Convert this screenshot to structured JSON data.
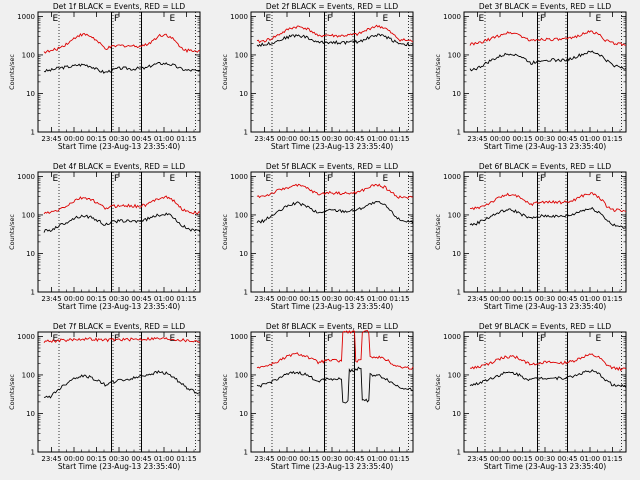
{
  "figure": {
    "background": "#f0f0f0",
    "colors": {
      "events": "#000000",
      "lld": "#dd0000"
    }
  },
  "chart_data": [
    {
      "type": "line",
      "title": "Det 1f BLACK = Events, RED = LLD",
      "xlabel": "Start Time (23-Aug-13 23:35:40)",
      "ylabel": "Counts/sec",
      "x_ticks": [
        "23:45",
        "00:00",
        "00:15",
        "00:30",
        "00:45",
        "01:00",
        "01:15"
      ],
      "y_ticks": [
        "1",
        "10",
        "100",
        "1000"
      ],
      "xlim_minutes": [
        -9,
        99
      ],
      "ylim": [
        1,
        1300
      ],
      "y_scale": "log",
      "vertical_lines_solid_min": [
        40,
        60
      ],
      "vertical_lines_dotted_min": [
        5,
        41,
        59,
        96
      ],
      "markers": [
        {
          "label": "E",
          "x": 0
        },
        {
          "label": "F",
          "x": 41
        },
        {
          "label": "E",
          "x": 78
        }
      ],
      "shape": "hump",
      "series": [
        {
          "name": "Events",
          "values": [
            38,
            40,
            45,
            48,
            50,
            55,
            56,
            50,
            40,
            35,
            40,
            45,
            45,
            43,
            45,
            45,
            55,
            60,
            60,
            55,
            45,
            40,
            40,
            37
          ]
        },
        {
          "name": "LLD",
          "values": [
            120,
            125,
            145,
            180,
            230,
            320,
            340,
            300,
            210,
            145,
            160,
            175,
            175,
            170,
            170,
            180,
            230,
            320,
            340,
            260,
            160,
            130,
            135,
            125
          ]
        }
      ]
    },
    {
      "type": "line",
      "title": "Det 2f BLACK = Events, RED = LLD",
      "xlabel": "Start Time (23-Aug-13 23:35:40)",
      "ylabel": "Counts/sec",
      "x_ticks": [
        "23:45",
        "00:00",
        "00:15",
        "00:30",
        "00:45",
        "01:00",
        "01:15"
      ],
      "y_ticks": [
        "1",
        "10",
        "100",
        "1000"
      ],
      "xlim_minutes": [
        -9,
        99
      ],
      "ylim": [
        1,
        1300
      ],
      "y_scale": "log",
      "vertical_lines_solid_min": [
        40,
        60
      ],
      "vertical_lines_dotted_min": [
        5,
        41,
        59,
        96
      ],
      "markers": [
        {
          "label": "E",
          "x": 0
        },
        {
          "label": "F",
          "x": 41
        },
        {
          "label": "E",
          "x": 78
        }
      ],
      "shape": "hump",
      "series": [
        {
          "name": "Events",
          "values": [
            180,
            185,
            200,
            230,
            270,
            310,
            320,
            300,
            250,
            210,
            215,
            215,
            210,
            210,
            215,
            220,
            260,
            310,
            330,
            300,
            240,
            200,
            190,
            180
          ]
        },
        {
          "name": "LLD",
          "values": [
            220,
            230,
            260,
            320,
            400,
            500,
            540,
            510,
            420,
            300,
            330,
            320,
            310,
            320,
            330,
            350,
            420,
            530,
            560,
            480,
            340,
            250,
            240,
            230
          ]
        }
      ]
    },
    {
      "type": "line",
      "title": "Det 3f BLACK = Events, RED = LLD",
      "xlabel": "Start Time (23-Aug-13 23:35:40)",
      "ylabel": "Counts/sec",
      "x_ticks": [
        "23:45",
        "00:00",
        "00:15",
        "00:30",
        "00:45",
        "01:00",
        "01:15"
      ],
      "y_ticks": [
        "1",
        "10",
        "100",
        "1000"
      ],
      "xlim_minutes": [
        -9,
        99
      ],
      "ylim": [
        1,
        1300
      ],
      "y_scale": "log",
      "vertical_lines_solid_min": [
        40,
        60
      ],
      "vertical_lines_dotted_min": [
        5,
        41,
        59,
        96
      ],
      "markers": [
        {
          "label": "E",
          "x": 0
        },
        {
          "label": "F",
          "x": 41
        },
        {
          "label": "E",
          "x": 78
        }
      ],
      "shape": "hump",
      "series": [
        {
          "name": "Events",
          "values": [
            42,
            44,
            55,
            70,
            85,
            100,
            110,
            100,
            80,
            60,
            70,
            75,
            75,
            72,
            75,
            80,
            95,
            110,
            120,
            105,
            75,
            55,
            50,
            45
          ]
        },
        {
          "name": "LLD",
          "values": [
            190,
            195,
            220,
            260,
            300,
            360,
            380,
            350,
            280,
            230,
            250,
            260,
            255,
            250,
            255,
            270,
            320,
            380,
            400,
            340,
            240,
            200,
            195,
            190
          ]
        }
      ]
    },
    {
      "type": "line",
      "title": "Det 4f BLACK = Events, RED = LLD",
      "xlabel": "Start Time (23-Aug-13 23:35:40)",
      "ylabel": "Counts/sec",
      "x_ticks": [
        "23:45",
        "00:00",
        "00:15",
        "00:30",
        "00:45",
        "01:00",
        "01:15"
      ],
      "y_ticks": [
        "1",
        "10",
        "100",
        "1000"
      ],
      "xlim_minutes": [
        -9,
        99
      ],
      "ylim": [
        1,
        1300
      ],
      "y_scale": "log",
      "vertical_lines_solid_min": [
        40,
        60
      ],
      "vertical_lines_dotted_min": [
        5,
        41,
        59,
        96
      ],
      "markers": [
        {
          "label": "E",
          "x": 0
        },
        {
          "label": "F",
          "x": 41
        },
        {
          "label": "E",
          "x": 78
        }
      ],
      "shape": "hump",
      "series": [
        {
          "name": "Events",
          "values": [
            38,
            40,
            50,
            60,
            75,
            90,
            95,
            85,
            70,
            55,
            65,
            70,
            70,
            68,
            70,
            75,
            90,
            100,
            105,
            90,
            60,
            45,
            40,
            37
          ]
        },
        {
          "name": "LLD",
          "values": [
            110,
            115,
            130,
            160,
            200,
            260,
            280,
            250,
            190,
            150,
            165,
            175,
            175,
            170,
            170,
            180,
            220,
            280,
            300,
            240,
            160,
            120,
            115,
            110
          ]
        }
      ]
    },
    {
      "type": "line",
      "title": "Det 5f BLACK = Events, RED = LLD",
      "xlabel": "Start Time (23-Aug-13 23:35:40)",
      "ylabel": "Counts/sec",
      "x_ticks": [
        "23:45",
        "00:00",
        "00:15",
        "00:30",
        "00:45",
        "01:00",
        "01:15"
      ],
      "y_ticks": [
        "1",
        "10",
        "100",
        "1000"
      ],
      "xlim_minutes": [
        -9,
        99
      ],
      "ylim": [
        1,
        1300
      ],
      "y_scale": "log",
      "vertical_lines_solid_min": [
        40,
        60
      ],
      "vertical_lines_dotted_min": [
        5,
        41,
        59,
        96
      ],
      "markers": [
        {
          "label": "E",
          "x": 0
        },
        {
          "label": "F",
          "x": 41
        },
        {
          "label": "E",
          "x": 78
        }
      ],
      "shape": "hump",
      "series": [
        {
          "name": "Events",
          "values": [
            65,
            70,
            90,
            115,
            150,
            190,
            200,
            180,
            140,
            110,
            125,
            135,
            130,
            125,
            130,
            140,
            170,
            200,
            210,
            170,
            110,
            75,
            70,
            65
          ]
        },
        {
          "name": "LLD",
          "values": [
            300,
            310,
            350,
            420,
            480,
            560,
            580,
            530,
            430,
            340,
            370,
            380,
            370,
            360,
            370,
            390,
            470,
            570,
            600,
            500,
            360,
            290,
            285,
            280
          ]
        }
      ]
    },
    {
      "type": "line",
      "title": "Det 6f BLACK = Events, RED = LLD",
      "xlabel": "Start Time (23-Aug-13 23:35:40)",
      "ylabel": "Counts/sec",
      "x_ticks": [
        "23:45",
        "00:00",
        "00:15",
        "00:30",
        "00:45",
        "01:00",
        "01:15"
      ],
      "y_ticks": [
        "1",
        "10",
        "100",
        "1000"
      ],
      "xlim_minutes": [
        -9,
        99
      ],
      "ylim": [
        1,
        1300
      ],
      "y_scale": "log",
      "vertical_lines_solid_min": [
        40,
        60
      ],
      "vertical_lines_dotted_min": [
        5,
        41,
        59,
        96
      ],
      "markers": [
        {
          "label": "E",
          "x": 0
        },
        {
          "label": "F",
          "x": 41
        },
        {
          "label": "E",
          "x": 78
        }
      ],
      "shape": "hump",
      "series": [
        {
          "name": "Events",
          "values": [
            55,
            60,
            75,
            90,
            110,
            130,
            135,
            120,
            95,
            80,
            90,
            95,
            95,
            90,
            95,
            100,
            120,
            140,
            145,
            120,
            80,
            55,
            50,
            45
          ]
        },
        {
          "name": "LLD",
          "values": [
            140,
            150,
            175,
            210,
            260,
            320,
            340,
            300,
            230,
            190,
            210,
            220,
            215,
            210,
            215,
            230,
            280,
            340,
            360,
            290,
            180,
            135,
            130,
            125
          ]
        }
      ]
    },
    {
      "type": "line",
      "title": "Det 7f BLACK = Events, RED = LLD",
      "xlabel": "Start Time (23-Aug-13 23:35:40)",
      "ylabel": "Counts/sec",
      "x_ticks": [
        "23:45",
        "00:00",
        "00:15",
        "00:30",
        "00:45",
        "01:00",
        "01:15"
      ],
      "y_ticks": [
        "1",
        "10",
        "100",
        "1000"
      ],
      "xlim_minutes": [
        -9,
        99
      ],
      "ylim": [
        1,
        1300
      ],
      "y_scale": "log",
      "vertical_lines_solid_min": [
        40,
        60
      ],
      "vertical_lines_dotted_min": [
        5,
        41,
        59,
        96
      ],
      "markers": [
        {
          "label": "E",
          "x": 0
        },
        {
          "label": "F",
          "x": 41
        },
        {
          "label": "E",
          "x": 78
        }
      ],
      "shape": "flat",
      "series": [
        {
          "name": "Events",
          "values": [
            25,
            28,
            40,
            55,
            75,
            90,
            95,
            85,
            70,
            55,
            65,
            72,
            75,
            80,
            90,
            100,
            110,
            120,
            110,
            90,
            65,
            45,
            38,
            35
          ]
        },
        {
          "name": "LLD",
          "values": [
            750,
            760,
            780,
            800,
            820,
            850,
            860,
            850,
            820,
            800,
            820,
            830,
            830,
            840,
            850,
            860,
            880,
            880,
            870,
            850,
            820,
            780,
            760,
            740
          ]
        }
      ]
    },
    {
      "type": "line",
      "title": "Det 8f BLACK = Events, RED = LLD",
      "xlabel": "Start Time (23-Aug-13 23:35:40)",
      "ylabel": "Counts/sec",
      "x_ticks": [
        "23:45",
        "00:00",
        "00:15",
        "00:30",
        "00:45",
        "01:00",
        "01:15"
      ],
      "y_ticks": [
        "1",
        "10",
        "100",
        "1000"
      ],
      "xlim_minutes": [
        -9,
        99
      ],
      "ylim": [
        1,
        1300
      ],
      "y_scale": "log",
      "vertical_lines_solid_min": [
        40,
        60
      ],
      "vertical_lines_dotted_min": [
        5,
        41,
        59,
        96
      ],
      "markers": [
        {
          "label": "E",
          "x": 0
        },
        {
          "label": "F",
          "x": 41
        },
        {
          "label": "E",
          "x": 78
        }
      ],
      "shape": "spiky",
      "series": [
        {
          "name": "Events",
          "values": [
            50,
            55,
            65,
            80,
            95,
            110,
            115,
            105,
            85,
            70,
            78,
            80,
            78,
            20,
            130,
            150,
            22,
            100,
            95,
            80,
            60,
            48,
            45,
            42
          ]
        },
        {
          "name": "LLD",
          "values": [
            160,
            165,
            185,
            220,
            270,
            330,
            350,
            320,
            260,
            210,
            230,
            240,
            230,
            1300,
            1300,
            230,
            1300,
            300,
            290,
            250,
            190,
            160,
            155,
            150
          ]
        }
      ]
    },
    {
      "type": "line",
      "title": "Det 9f BLACK = Events, RED = LLD",
      "xlabel": "Start Time (23-Aug-13 23:35:40)",
      "ylabel": "Counts/sec",
      "x_ticks": [
        "23:45",
        "00:00",
        "00:15",
        "00:30",
        "00:45",
        "01:00",
        "01:15"
      ],
      "y_ticks": [
        "1",
        "10",
        "100",
        "1000"
      ],
      "xlim_minutes": [
        -9,
        99
      ],
      "ylim": [
        1,
        1300
      ],
      "y_scale": "log",
      "vertical_lines_solid_min": [
        40,
        60
      ],
      "vertical_lines_dotted_min": [
        5,
        41,
        59,
        96
      ],
      "markers": [
        {
          "label": "E",
          "x": 0
        },
        {
          "label": "F",
          "x": 41
        },
        {
          "label": "E",
          "x": 78
        }
      ],
      "shape": "hump",
      "series": [
        {
          "name": "Events",
          "values": [
            55,
            58,
            70,
            80,
            95,
            110,
            115,
            105,
            85,
            75,
            82,
            85,
            84,
            82,
            85,
            90,
            105,
            120,
            125,
            105,
            75,
            55,
            52,
            50
          ]
        },
        {
          "name": "LLD",
          "values": [
            150,
            155,
            175,
            200,
            240,
            290,
            300,
            280,
            220,
            190,
            205,
            210,
            208,
            205,
            210,
            220,
            260,
            310,
            330,
            280,
            190,
            150,
            145,
            140
          ]
        }
      ]
    }
  ]
}
